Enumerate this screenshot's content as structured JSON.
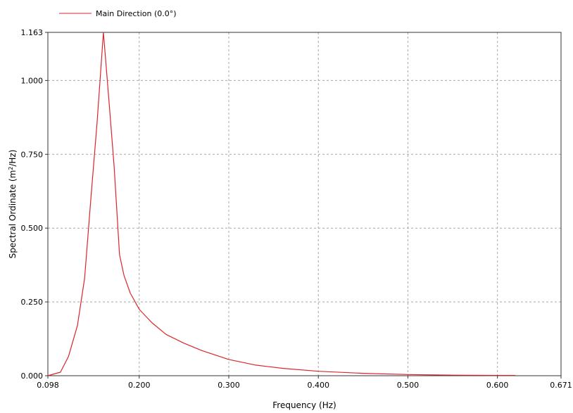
{
  "chart_data": {
    "type": "line",
    "title": "",
    "xlabel": "Frequency (Hz)",
    "ylabel_prefix": "Spectral Ordinate (m",
    "ylabel_sup": "2",
    "ylabel_suffix": "/Hz)",
    "xlim": [
      0.098,
      0.671
    ],
    "ylim": [
      0.0,
      1.163
    ],
    "x_ticks": [
      {
        "value": 0.098,
        "label": "0.098"
      },
      {
        "value": 0.2,
        "label": "0.200"
      },
      {
        "value": 0.3,
        "label": "0.300"
      },
      {
        "value": 0.4,
        "label": "0.400"
      },
      {
        "value": 0.5,
        "label": "0.500"
      },
      {
        "value": 0.6,
        "label": "0.600"
      },
      {
        "value": 0.671,
        "label": "0.671"
      }
    ],
    "y_ticks": [
      {
        "value": 0.0,
        "label": "0.000"
      },
      {
        "value": 0.25,
        "label": "0.250"
      },
      {
        "value": 0.5,
        "label": "0.500"
      },
      {
        "value": 0.75,
        "label": "0.750"
      },
      {
        "value": 1.0,
        "label": "1.000"
      },
      {
        "value": 1.163,
        "label": "1.163"
      }
    ],
    "grid": true,
    "legend_position": "top-left",
    "series": [
      {
        "name": "Main Direction (0.0°)",
        "color": "#d9262b",
        "x": [
          0.098,
          0.112,
          0.121,
          0.131,
          0.139,
          0.146,
          0.153,
          0.16,
          0.166,
          0.172,
          0.178,
          0.183,
          0.19,
          0.2,
          0.214,
          0.23,
          0.25,
          0.27,
          0.3,
          0.33,
          0.36,
          0.4,
          0.45,
          0.5,
          0.55,
          0.6,
          0.62
        ],
        "y": [
          0.0,
          0.012,
          0.065,
          0.17,
          0.33,
          0.6,
          0.86,
          1.163,
          0.94,
          0.71,
          0.41,
          0.34,
          0.28,
          0.225,
          0.18,
          0.14,
          0.11,
          0.085,
          0.055,
          0.036,
          0.025,
          0.015,
          0.008,
          0.004,
          0.002,
          0.001,
          0.001
        ]
      }
    ]
  }
}
